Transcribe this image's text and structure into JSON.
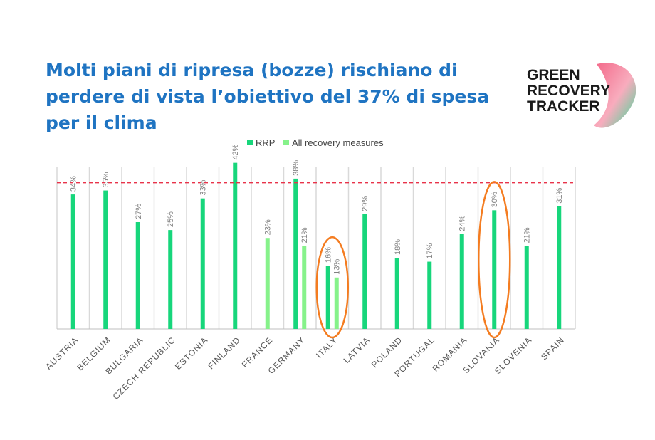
{
  "slide": {
    "title": "Molti piani di ripresa (bozze) rischiano di perdere di vista l’obiettivo del 37% di spesa per il clima"
  },
  "logo": {
    "lines": [
      "GREEN",
      "RECOVERY",
      "TRACKER"
    ],
    "colors": {
      "text": "#1a1a1a",
      "pink": "#f2557a",
      "green": "#24d68c"
    }
  },
  "chart_data": {
    "type": "bar",
    "categories": [
      "AUSTRIA",
      "BELGIUM",
      "BULGARIA",
      "CZECH REPUBLIC",
      "ESTONIA",
      "FINLAND",
      "FRANCE",
      "GERMANY",
      "ITALY",
      "LATVIA",
      "POLAND",
      "PORTUGAL",
      "ROMANIA",
      "SLOVAKIA",
      "SLOVENIA",
      "SPAIN"
    ],
    "series": [
      {
        "name": "RRP",
        "color": "#17d67b",
        "values": [
          34,
          35,
          27,
          25,
          33,
          42,
          null,
          38,
          16,
          29,
          18,
          17,
          24,
          30,
          21,
          31
        ]
      },
      {
        "name": "All recovery measures",
        "color": "#86f28a",
        "values": [
          null,
          null,
          null,
          null,
          null,
          null,
          23,
          21,
          13,
          null,
          null,
          null,
          null,
          null,
          null,
          null
        ]
      }
    ],
    "value_labels": {
      "RRP": [
        "34%",
        "35%",
        "27%",
        "25%",
        "33%",
        "42%",
        "",
        "38%",
        "16%",
        "29%",
        "18%",
        "17%",
        "24%",
        "30%",
        "21%",
        "31%"
      ],
      "All recovery measures": [
        "",
        "",
        "",
        "",
        "",
        "",
        "23%",
        "21%",
        "13%",
        "",
        "",
        "",
        "",
        "",
        "",
        ""
      ]
    },
    "reference_line": {
      "value": 37,
      "color": "#e8334a",
      "style": "dashed"
    },
    "highlighted_categories": [
      "ITALY",
      "SLOVAKIA"
    ],
    "highlight_color": "#f47c20",
    "ylim": [
      0,
      45
    ],
    "grid": "vertical separators",
    "legend": {
      "position": "top"
    }
  }
}
